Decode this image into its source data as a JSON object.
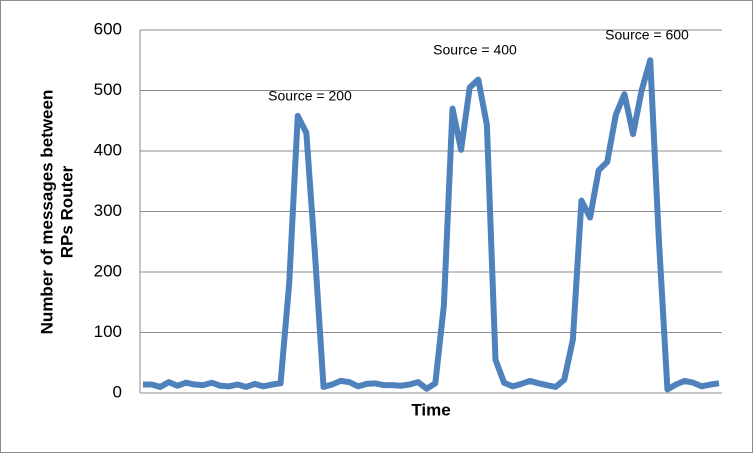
{
  "chart_data": {
    "type": "line",
    "xlabel": "Time",
    "ylabel": [
      "Number of messages between",
      "RPs Router"
    ],
    "categories": [
      null,
      null,
      null,
      null,
      null,
      null,
      null,
      null,
      null,
      null,
      null,
      null,
      null,
      null,
      null,
      null,
      null,
      null,
      null,
      null,
      null,
      null,
      null,
      null,
      null,
      null,
      null,
      null,
      null,
      null,
      null,
      null,
      null,
      null,
      null,
      null,
      null,
      null,
      null,
      null,
      null,
      null,
      null,
      null,
      null,
      null,
      null,
      null,
      null,
      null,
      null,
      null,
      null,
      null,
      null,
      null,
      null,
      null,
      null,
      null,
      null,
      null,
      null,
      null,
      null,
      null,
      null,
      null
    ],
    "series": [
      {
        "color": "#4f81bd",
        "values": [
          14,
          14,
          10,
          18,
          12,
          17,
          14,
          13,
          17,
          12,
          11,
          14,
          10,
          15,
          11,
          14,
          16,
          180,
          458,
          430,
          230,
          10,
          14,
          20,
          18,
          11,
          15,
          16,
          13,
          13,
          12,
          14,
          18,
          7,
          16,
          145,
          470,
          402,
          505,
          518,
          443,
          55,
          17,
          11,
          15,
          20,
          16,
          13,
          10,
          22,
          88,
          318,
          290,
          368,
          382,
          460,
          494,
          428,
          500,
          550,
          255,
          6,
          14,
          20,
          17,
          11,
          14,
          16
        ]
      }
    ],
    "annotations": [
      "Source = 200",
      "Source = 400",
      "Source = 600"
    ],
    "ylim": [
      0,
      600
    ],
    "yticks": [
      0,
      100,
      200,
      300,
      400,
      500,
      600
    ],
    "grid": true
  }
}
